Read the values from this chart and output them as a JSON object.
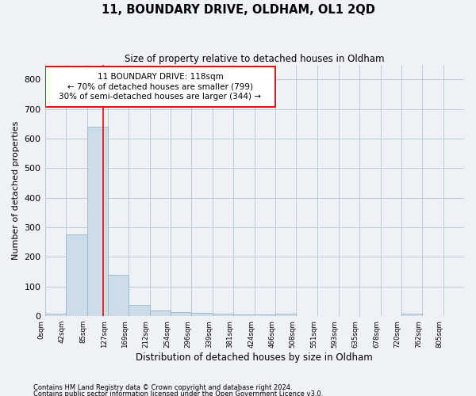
{
  "title": "11, BOUNDARY DRIVE, OLDHAM, OL1 2QD",
  "subtitle": "Size of property relative to detached houses in Oldham",
  "xlabel": "Distribution of detached houses by size in Oldham",
  "ylabel": "Number of detached properties",
  "footnote1": "Contains HM Land Registry data © Crown copyright and database right 2024.",
  "footnote2": "Contains public sector information licensed under the Open Government Licence v3.0.",
  "bar_color": "#ccdce8",
  "bar_edge_color": "#9ab4c8",
  "grid_color": "#b8ccd8",
  "property_line_x": 118,
  "annotation_line1": "11 BOUNDARY DRIVE: 118sqm",
  "annotation_line2": "← 70% of detached houses are smaller (799)",
  "annotation_line3": "30% of semi-detached houses are larger (344) →",
  "bin_edges": [
    0,
    42,
    85,
    127,
    169,
    212,
    254,
    296,
    339,
    381,
    424,
    466,
    508,
    551,
    593,
    635,
    678,
    720,
    762,
    805,
    847
  ],
  "bin_counts": [
    8,
    275,
    640,
    140,
    38,
    20,
    13,
    10,
    8,
    5,
    5,
    8,
    0,
    0,
    0,
    0,
    0,
    8,
    0,
    0
  ],
  "ylim": [
    0,
    850
  ],
  "yticks": [
    0,
    100,
    200,
    300,
    400,
    500,
    600,
    700,
    800
  ],
  "background_color": "#eef2f6"
}
